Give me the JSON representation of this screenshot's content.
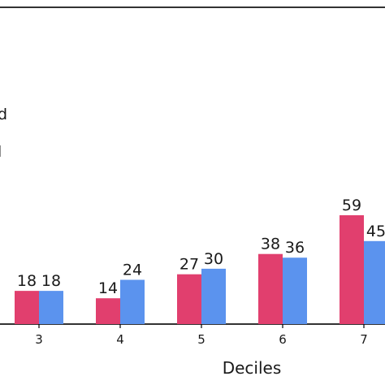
{
  "chart_data": {
    "type": "bar",
    "xlabel": "Deciles",
    "ylabel": "",
    "categories": [
      "3",
      "4",
      "5",
      "6",
      "7"
    ],
    "series": [
      {
        "name": "d",
        "color": "#e13f6e",
        "values": [
          18,
          14,
          27,
          38,
          59
        ]
      },
      {
        "name": "l",
        "color": "#5b93ee",
        "values": [
          18,
          24,
          30,
          36,
          45
        ]
      }
    ],
    "value_labels": {
      "series_0": [
        "18",
        "14",
        "27",
        "38",
        "59"
      ],
      "series_1": [
        "18",
        "24",
        "30",
        "36",
        "45"
      ]
    },
    "ylim": [
      0,
      60
    ],
    "grid": false,
    "legend_position": "left"
  }
}
